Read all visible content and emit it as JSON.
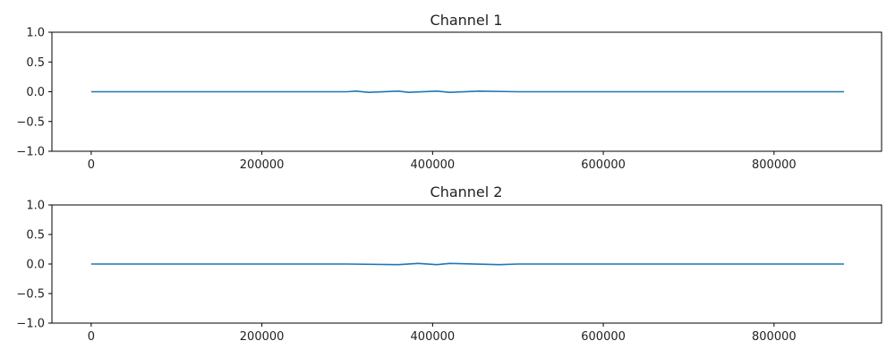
{
  "chart_data": [
    {
      "type": "line",
      "title": "Channel 1",
      "xlabel": "",
      "ylabel": "",
      "xlim": [
        -46000,
        926000
      ],
      "ylim": [
        -1.0,
        1.0
      ],
      "x_ticks": [
        0,
        200000,
        400000,
        600000,
        800000
      ],
      "x_tick_labels": [
        "0",
        "200000",
        "400000",
        "600000",
        "800000"
      ],
      "y_ticks": [
        1.0,
        0.5,
        0.0,
        -0.5,
        -1.0
      ],
      "y_tick_labels": [
        "1.0",
        "0.5",
        "0.0",
        "−0.5",
        "−1.0"
      ],
      "grid": false,
      "series": [
        {
          "color": "#1f77b4",
          "x": [
            0,
            100000,
            200000,
            300000,
            310000,
            325000,
            360000,
            372000,
            405000,
            420000,
            455000,
            500000,
            600000,
            700000,
            800000,
            882000
          ],
          "y": [
            0,
            0,
            0,
            0,
            0.01,
            -0.01,
            0.01,
            -0.01,
            0.01,
            -0.01,
            0.01,
            0,
            0,
            0,
            0,
            0
          ]
        }
      ]
    },
    {
      "type": "line",
      "title": "Channel 2",
      "xlabel": "",
      "ylabel": "",
      "xlim": [
        -46000,
        926000
      ],
      "ylim": [
        -1.0,
        1.0
      ],
      "x_ticks": [
        0,
        200000,
        400000,
        600000,
        800000
      ],
      "x_tick_labels": [
        "0",
        "200000",
        "400000",
        "600000",
        "800000"
      ],
      "y_ticks": [
        1.0,
        0.5,
        0.0,
        -0.5,
        -1.0
      ],
      "y_tick_labels": [
        "1.0",
        "0.5",
        "0.0",
        "−0.5",
        "−1.0"
      ],
      "grid": false,
      "series": [
        {
          "color": "#1f77b4",
          "x": [
            0,
            100000,
            200000,
            300000,
            360000,
            383000,
            405000,
            420000,
            478000,
            500000,
            600000,
            700000,
            800000,
            882000
          ],
          "y": [
            0,
            0,
            0,
            0,
            -0.01,
            0.01,
            -0.01,
            0.01,
            -0.01,
            0,
            0,
            0,
            0,
            0
          ]
        }
      ]
    }
  ]
}
